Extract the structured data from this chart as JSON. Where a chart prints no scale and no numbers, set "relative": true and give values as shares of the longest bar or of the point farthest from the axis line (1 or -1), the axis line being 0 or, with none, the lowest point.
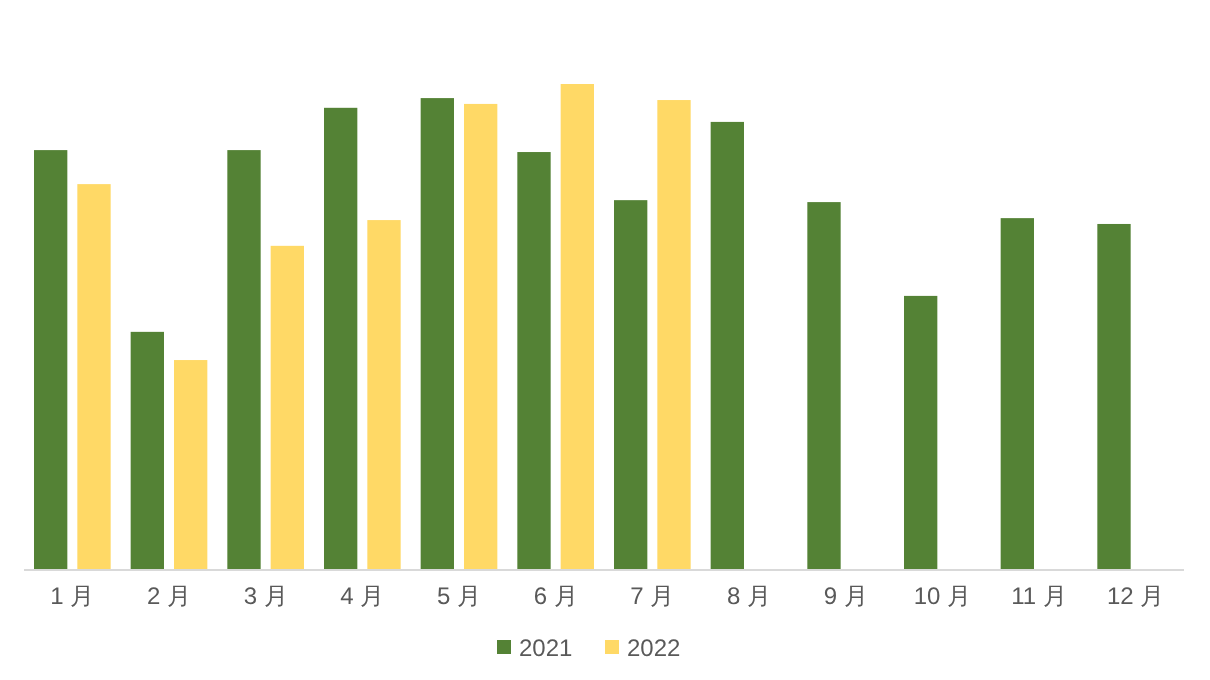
{
  "chart_data": {
    "type": "bar",
    "relative": true,
    "legend": "bottom",
    "grid": false,
    "categories": [
      "1 月",
      "2 月",
      "3 月",
      "4 月",
      "5 月",
      "6 月",
      "7 月",
      "8 月",
      "9 月",
      "10 月",
      "11 月",
      "12 月"
    ],
    "series": [
      {
        "name": "2021",
        "color": "#548235",
        "values": [
          0.864,
          0.49,
          0.864,
          0.951,
          0.971,
          0.86,
          0.761,
          0.922,
          0.757,
          0.564,
          0.724,
          0.712
        ]
      },
      {
        "name": "2022",
        "color": "#ffd966",
        "values": [
          0.794,
          0.432,
          0.667,
          0.72,
          0.959,
          1,
          0.967,
          null,
          null,
          null,
          null,
          null
        ]
      }
    ]
  }
}
